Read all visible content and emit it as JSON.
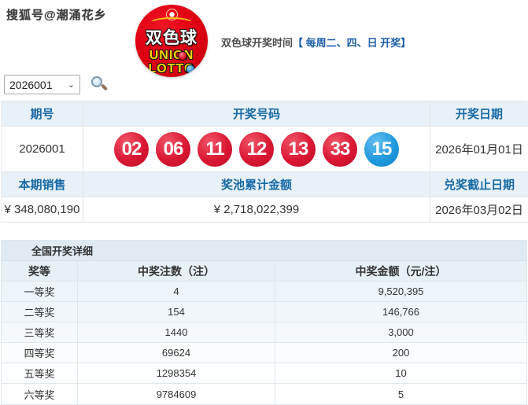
{
  "watermark": "搜狐号@潮涌花乡",
  "logo": {
    "name": "双色球",
    "latin1": "UNION",
    "latin2": "LOTTO"
  },
  "tagline": {
    "prefix": "双色球开奖时间",
    "highlight": "【 每周二、四、日 开奖】"
  },
  "issue_selector": {
    "value": "2026001",
    "chevron": "⌄"
  },
  "draw_table": {
    "header_issue": "期号",
    "header_numbers": "开奖号码",
    "header_date": "开奖日期",
    "issue": "2026001",
    "balls": [
      "02",
      "06",
      "11",
      "12",
      "13",
      "33",
      "15"
    ],
    "ball_colors": [
      "red",
      "red",
      "red",
      "red",
      "red",
      "red",
      "blue"
    ],
    "date": "2026年01月01日",
    "header_sales": "本期销售",
    "header_pool": "奖池累计金额",
    "header_deadline": "兑奖截止日期",
    "sales": "¥ 348,080,190",
    "pool": "¥ 2,718,022,399",
    "deadline": "2026年03月02日"
  },
  "prize_table": {
    "section_title": "全国开奖详细",
    "col_tier": "奖等",
    "col_count": "中奖注数（注）",
    "col_amount": "中奖金额（元/注）",
    "rows": [
      {
        "tier": "一等奖",
        "count": "4",
        "amount": "9,520,395"
      },
      {
        "tier": "二等奖",
        "count": "154",
        "amount": "146,766"
      },
      {
        "tier": "三等奖",
        "count": "1440",
        "amount": "3,000"
      },
      {
        "tier": "四等奖",
        "count": "69624",
        "amount": "200"
      },
      {
        "tier": "五等奖",
        "count": "1298354",
        "amount": "10"
      },
      {
        "tier": "六等奖",
        "count": "9784609",
        "amount": "5"
      }
    ]
  },
  "colors": {
    "accent_blue": "#1769a5",
    "tagline_blue": "#1f5fa9",
    "red_ball": "#da1733",
    "blue_ball": "#2199dd",
    "header_bg": "#e9f1f8"
  }
}
